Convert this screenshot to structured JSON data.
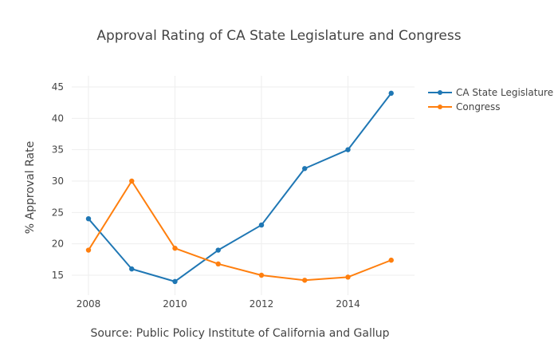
{
  "chart_data": {
    "type": "line",
    "title": "Approval Rating of CA State Legislature and Congress",
    "xlabel": "Source: Public Policy Institute of California and Gallup",
    "ylabel": "% Approval Rate",
    "x": [
      2008,
      2009,
      2010,
      2011,
      2012,
      2013,
      2014,
      2015
    ],
    "xticks": [
      2008,
      2010,
      2012,
      2014
    ],
    "xlim": [
      2007.8,
      2016.0
    ],
    "yticks": [
      15,
      20,
      25,
      30,
      35,
      40,
      45
    ],
    "ylim": [
      12.5,
      46
    ],
    "grid": true,
    "legend_position": "top-right",
    "series": [
      {
        "name": "CA State Legislature",
        "color": "#1f77b4",
        "values": [
          24,
          16,
          14,
          19,
          23,
          32,
          35,
          44
        ]
      },
      {
        "name": "Congress",
        "color": "#ff7f0e",
        "values": [
          19,
          30,
          19.3,
          16.8,
          15,
          14.2,
          14.7,
          17.4
        ]
      }
    ]
  }
}
